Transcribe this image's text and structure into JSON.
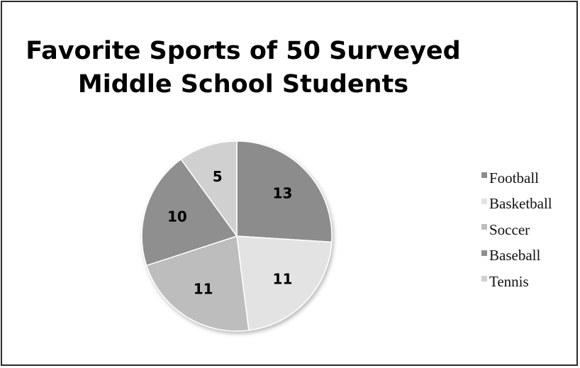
{
  "chart_data": {
    "type": "pie",
    "title": "Favorite Sports of 50 Surveyed Middle School Students",
    "categories": [
      "Football",
      "Basketball",
      "Soccer",
      "Baseball",
      "Tennis"
    ],
    "values": [
      13,
      11,
      11,
      10,
      5
    ],
    "data_labels": [
      "13",
      "11",
      "11",
      "10",
      "5"
    ],
    "colors": [
      "#8c8c8c",
      "#e3e3e3",
      "#bdbdbd",
      "#8f8f8f",
      "#d0d0d0"
    ],
    "legend_position": "right",
    "start_angle": "12 o'clock",
    "direction": "clockwise"
  }
}
